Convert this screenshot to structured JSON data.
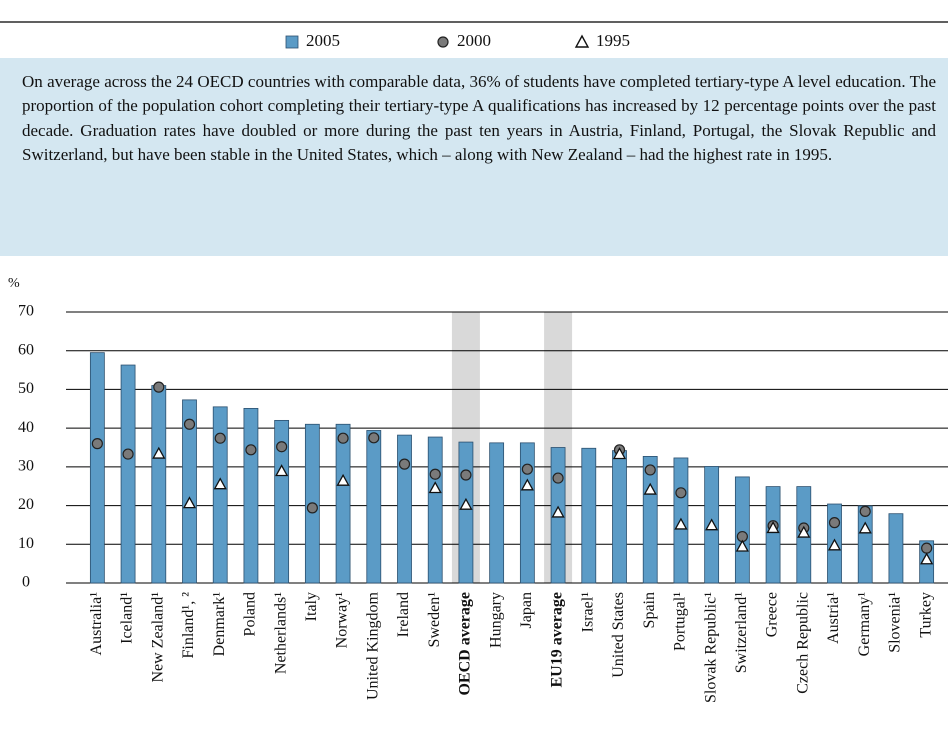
{
  "chart_data": {
    "type": "bar",
    "intro": "On average across the 24 OECD countries with comparable data, 36% of students have completed tertiary-type A level education. The proportion of the population cohort completing their tertiary-type A qualifications has increased by 12 percentage points over the past decade. Graduation rates have doubled or more during the past ten years in Austria, Finland, Portugal, the Slovak Republic and Switzerland, but have been stable in the United States, which – along with New Zealand – had the highest rate in 1995.",
    "y_label": "%",
    "categories": [
      "Australia¹",
      "Iceland¹",
      "New Zealand¹",
      "Finland¹, ²",
      "Denmark¹",
      "Poland",
      "Netherlands¹",
      "Italy",
      "Norway¹",
      "United Kingdom",
      "Ireland",
      "Sweden¹",
      "OECD average",
      "Hungary",
      "Japan",
      "EU19 average",
      "Israel¹",
      "United States",
      "Spain",
      "Portugal¹",
      "Slovak Republic¹",
      "Switzerland¹",
      "Greece",
      "Czech Republic",
      "Austria¹",
      "Germany¹",
      "Slovenia¹",
      "Turkey"
    ],
    "highlight_indices": [
      12,
      15
    ],
    "series": [
      {
        "name": "2005",
        "color": "#5b9bc6",
        "values": [
          59.5,
          56.3,
          51,
          47.3,
          45.5,
          45.1,
          42,
          41,
          41,
          39.4,
          38.2,
          37.7,
          36.4,
          36.2,
          36.2,
          35,
          34.8,
          34.2,
          32.7,
          32.3,
          30.1,
          27.4,
          24.9,
          24.9,
          20.4,
          19.9,
          17.9,
          10.9
        ]
      },
      {
        "name": "2000",
        "color": "#7a7a7a",
        "values": [
          36,
          33.3,
          50.6,
          41,
          37.4,
          34.4,
          35.2,
          19.4,
          37.4,
          37.5,
          30.7,
          28.1,
          27.9,
          null,
          29.4,
          27.1,
          null,
          34.4,
          29.2,
          23.3,
          null,
          12,
          14.8,
          14.2,
          15.6,
          18.5,
          null,
          9
        ]
      },
      {
        "name": "1995",
        "color": "#ffffff",
        "values": [
          null,
          null,
          33.3,
          20.5,
          25.4,
          null,
          28.8,
          null,
          26.3,
          null,
          null,
          24.4,
          20.1,
          null,
          25.1,
          18.1,
          null,
          33.2,
          24,
          15,
          14.8,
          9.3,
          14.1,
          12.9,
          9.6,
          14,
          null,
          6
        ]
      }
    ],
    "ylim": [
      0,
      70
    ],
    "yticks": [
      0,
      10,
      20,
      30,
      40,
      50,
      60,
      70
    ],
    "grid": true
  }
}
